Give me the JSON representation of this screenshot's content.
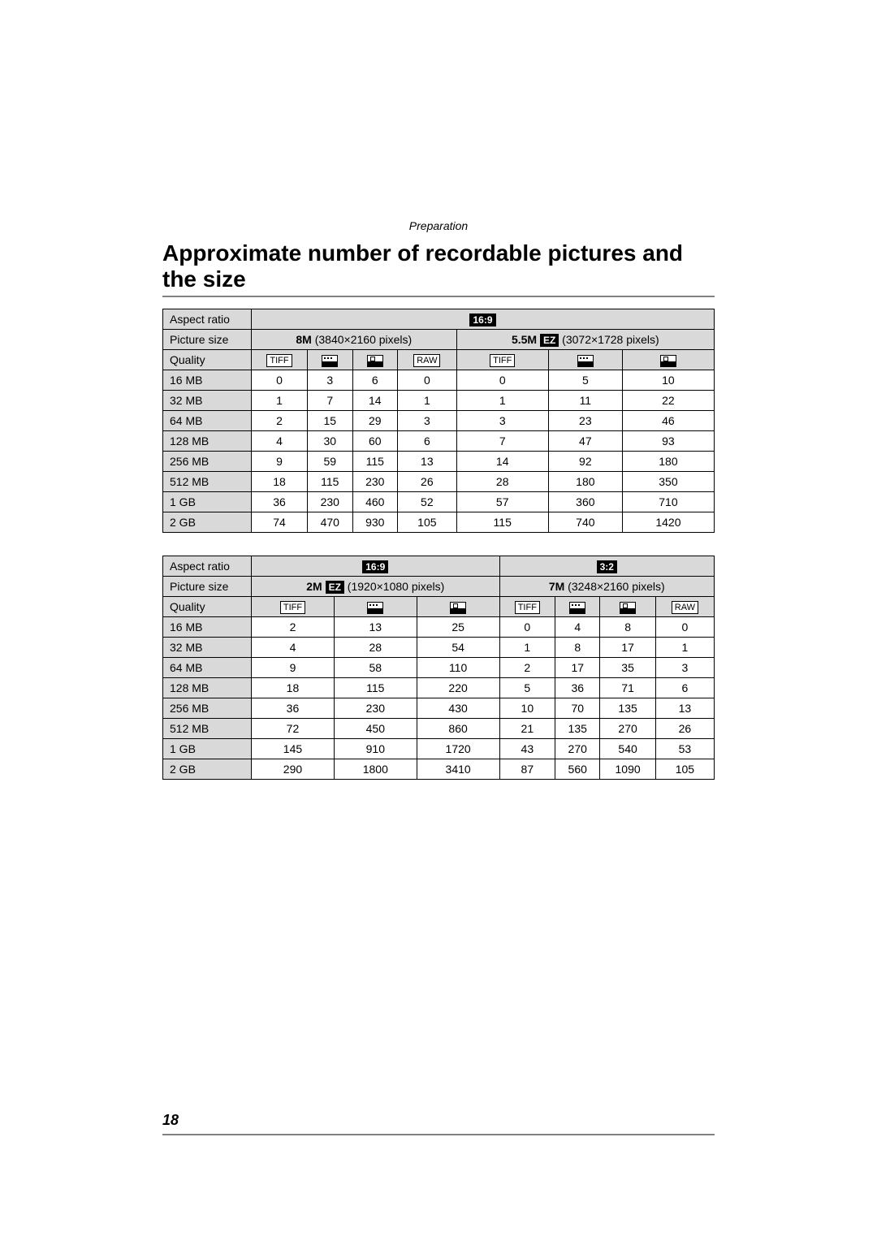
{
  "header": {
    "section": "Preparation",
    "title": "Approximate number of recordable pictures and the size"
  },
  "labels": {
    "aspect": "Aspect ratio",
    "picture": "Picture size",
    "quality": "Quality",
    "tiff": "TIFF",
    "raw": "RAW",
    "ez": "EZ",
    "ratio169": "16:9",
    "ratio32": "3:2"
  },
  "sizes": [
    "16 MB",
    "32 MB",
    "64 MB",
    "128 MB",
    "256 MB",
    "512 MB",
    "1 GB",
    "2 GB"
  ],
  "table1": {
    "aspect": "16:9",
    "left": {
      "bold": "8M",
      "rest": " (3840×2160 pixels)",
      "cols": [
        "tiff",
        "fine",
        "std",
        "raw"
      ],
      "rows": [
        [
          "0",
          "3",
          "6",
          "0"
        ],
        [
          "1",
          "7",
          "14",
          "1"
        ],
        [
          "2",
          "15",
          "29",
          "3"
        ],
        [
          "4",
          "30",
          "60",
          "6"
        ],
        [
          "9",
          "59",
          "115",
          "13"
        ],
        [
          "18",
          "115",
          "230",
          "26"
        ],
        [
          "36",
          "230",
          "460",
          "52"
        ],
        [
          "74",
          "470",
          "930",
          "105"
        ]
      ]
    },
    "right": {
      "bold": "5.5M",
      "ez": true,
      "rest": " (3072×1728 pixels)",
      "cols": [
        "tiff",
        "fine",
        "std"
      ],
      "rows": [
        [
          "0",
          "5",
          "10"
        ],
        [
          "1",
          "11",
          "22"
        ],
        [
          "3",
          "23",
          "46"
        ],
        [
          "7",
          "47",
          "93"
        ],
        [
          "14",
          "92",
          "180"
        ],
        [
          "28",
          "180",
          "350"
        ],
        [
          "57",
          "360",
          "710"
        ],
        [
          "115",
          "740",
          "1420"
        ]
      ]
    }
  },
  "table2": {
    "left": {
      "aspect": "16:9",
      "bold": "2M",
      "ez": true,
      "rest": " (1920×1080 pixels)",
      "cols": [
        "tiff",
        "fine",
        "std"
      ],
      "rows": [
        [
          "2",
          "13",
          "25"
        ],
        [
          "4",
          "28",
          "54"
        ],
        [
          "9",
          "58",
          "110"
        ],
        [
          "18",
          "115",
          "220"
        ],
        [
          "36",
          "230",
          "430"
        ],
        [
          "72",
          "450",
          "860"
        ],
        [
          "145",
          "910",
          "1720"
        ],
        [
          "290",
          "1800",
          "3410"
        ]
      ]
    },
    "right": {
      "aspect": "3:2",
      "bold": "7M",
      "rest": " (3248×2160 pixels)",
      "cols": [
        "tiff",
        "fine",
        "std",
        "raw"
      ],
      "rows": [
        [
          "0",
          "4",
          "8",
          "0"
        ],
        [
          "1",
          "8",
          "17",
          "1"
        ],
        [
          "2",
          "17",
          "35",
          "3"
        ],
        [
          "5",
          "36",
          "71",
          "6"
        ],
        [
          "10",
          "70",
          "135",
          "13"
        ],
        [
          "21",
          "135",
          "270",
          "26"
        ],
        [
          "43",
          "270",
          "540",
          "53"
        ],
        [
          "87",
          "560",
          "1090",
          "105"
        ]
      ]
    }
  },
  "page_number": "18"
}
